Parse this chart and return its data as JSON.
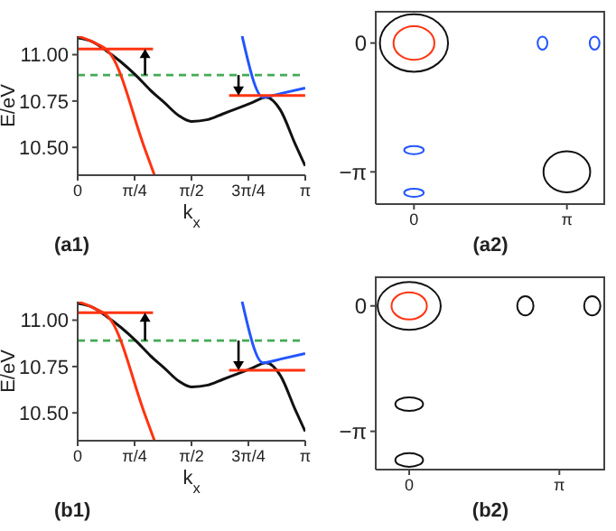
{
  "chart_data": [
    {
      "type": "line",
      "xlabel": "k$_{x}$",
      "ylabel": "E/eV",
      "annotations": [
        "(a1)"
      ],
      "xlim": [
        0,
        3.1416
      ],
      "ylim": [
        10.35,
        11.1
      ],
      "xticks": [
        {
          "value": 0,
          "label": "0"
        },
        {
          "value": 0.7854,
          "label": "π/4"
        },
        {
          "value": 1.5708,
          "label": "π/2"
        },
        {
          "value": 2.3562,
          "label": "3π/4"
        },
        {
          "value": 3.1416,
          "label": "π"
        }
      ],
      "yticks": [
        {
          "value": 10.5,
          "label": "10.50"
        },
        {
          "value": 10.75,
          "label": "10.75"
        },
        {
          "value": 11,
          "label": "11.00"
        }
      ],
      "ref_lines": [
        {
          "axis": "y",
          "value": 10.89,
          "color": "#44aa55",
          "line_style": "dashed"
        }
      ],
      "series": [
        {
          "type": "line",
          "color": "#111111",
          "x": [
            0,
            0.2,
            0.4,
            0.6,
            0.8,
            1.0,
            1.2,
            1.4,
            1.57,
            1.8,
            2.0,
            2.2,
            2.4,
            2.6,
            2.8,
            3.0,
            3.14
          ],
          "values": [
            11.09,
            11.07,
            11.02,
            10.96,
            10.89,
            10.81,
            10.74,
            10.67,
            10.64,
            10.65,
            10.68,
            10.71,
            10.74,
            10.77,
            10.7,
            10.52,
            10.4
          ]
        },
        {
          "type": "line",
          "color": "#ff3311",
          "x": [
            0,
            0.2,
            0.46,
            0.92,
            1.06
          ],
          "values": [
            11.1,
            11.07,
            11.0,
            10.5,
            10.35
          ]
        },
        {
          "type": "line",
          "color": "#2255ff",
          "x": [
            2.27,
            2.56,
            2.8,
            3.14
          ],
          "values": [
            11.1,
            10.77,
            10.79,
            10.82
          ]
        },
        {
          "type": "line",
          "color": "#ff3311",
          "x": [
            0,
            1.04
          ],
          "values": [
            11.03,
            11.03
          ]
        },
        {
          "type": "line",
          "color": "#ff3311",
          "x": [
            2.09,
            3.14
          ],
          "values": [
            10.78,
            10.78
          ]
        }
      ]
    },
    {
      "type": "line",
      "annotations": [
        "(a2)"
      ],
      "xlim": [
        -0.785,
        3.927
      ],
      "ylim": [
        -3.927,
        0.785
      ],
      "xticks": [
        {
          "value": 0,
          "label": "0"
        },
        {
          "value": 3.1416,
          "label": "π"
        }
      ],
      "yticks": [
        {
          "value": 0,
          "label": "0"
        },
        {
          "value": -3.1416,
          "label": "−π"
        }
      ]
    },
    {
      "type": "line",
      "xlabel": "k$_{x}$",
      "ylabel": "E/eV",
      "annotations": [
        "(b1)"
      ],
      "xlim": [
        0,
        3.1416
      ],
      "ylim": [
        10.35,
        11.1
      ],
      "xticks": [
        {
          "value": 0,
          "label": "0"
        },
        {
          "value": 0.7854,
          "label": "π/4"
        },
        {
          "value": 1.5708,
          "label": "π/2"
        },
        {
          "value": 2.3562,
          "label": "3π/4"
        },
        {
          "value": 3.1416,
          "label": "π"
        }
      ],
      "yticks": [
        {
          "value": 10.5,
          "label": "10.50"
        },
        {
          "value": 10.75,
          "label": "10.75"
        },
        {
          "value": 11,
          "label": "11.00"
        }
      ],
      "ref_lines": [
        {
          "axis": "y",
          "value": 10.89,
          "color": "#44aa55",
          "line_style": "dashed"
        }
      ],
      "series": [
        {
          "type": "line",
          "color": "#111111",
          "x": [
            0,
            0.2,
            0.4,
            0.6,
            0.8,
            1.0,
            1.2,
            1.4,
            1.57,
            1.8,
            2.0,
            2.2,
            2.4,
            2.6,
            2.8,
            3.0,
            3.14
          ],
          "values": [
            11.09,
            11.07,
            11.02,
            10.96,
            10.89,
            10.81,
            10.74,
            10.67,
            10.64,
            10.65,
            10.68,
            10.71,
            10.74,
            10.77,
            10.7,
            10.52,
            10.4
          ]
        },
        {
          "type": "line",
          "color": "#ff3311",
          "x": [
            0,
            0.2,
            0.46,
            0.92,
            1.06
          ],
          "values": [
            11.1,
            11.07,
            11.0,
            10.5,
            10.35
          ]
        },
        {
          "type": "line",
          "color": "#2255ff",
          "x": [
            2.27,
            2.56,
            2.8,
            3.14
          ],
          "values": [
            11.1,
            10.77,
            10.79,
            10.82
          ]
        },
        {
          "type": "line",
          "color": "#ff3311",
          "x": [
            0,
            1.04
          ],
          "values": [
            11.04,
            11.04
          ]
        },
        {
          "type": "line",
          "color": "#ff3311",
          "x": [
            2.09,
            3.14
          ],
          "values": [
            10.73,
            10.73
          ]
        }
      ]
    },
    {
      "type": "line",
      "annotations": [
        "(b2)"
      ],
      "xlim": [
        -0.7,
        4.1
      ],
      "ylim": [
        -4.1,
        0.74
      ],
      "xticks": [
        {
          "value": 0,
          "label": "0"
        },
        {
          "value": 3.1416,
          "label": "π"
        }
      ],
      "yticks": [
        {
          "value": 0,
          "label": "0"
        },
        {
          "value": -3.1416,
          "label": "−π"
        }
      ]
    }
  ]
}
